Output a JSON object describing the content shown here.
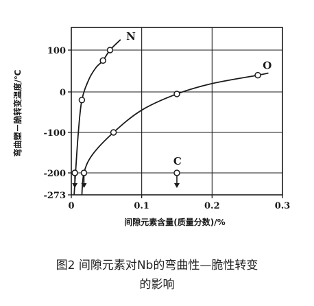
{
  "chart_data": {
    "type": "line",
    "ylabel": "弯曲塑－脆转变温度/℃",
    "xlabel": "间隙元素含量(质量分数)/%",
    "xlim": [
      0,
      0.3
    ],
    "ylim": [
      -273,
      150
    ],
    "x_ticks": [
      "0",
      "0.1",
      "0.2",
      "0.3"
    ],
    "y_ticks": [
      "100",
      "0",
      "-100",
      "-200",
      "-273"
    ],
    "y_tick_values": [
      100,
      0,
      -100,
      -200,
      -273
    ],
    "grid": true,
    "series": [
      {
        "name": "N",
        "x": [
          0.005,
          0.015,
          0.045,
          0.055
        ],
        "y": [
          -200,
          -20,
          75,
          100
        ],
        "curve_x": [
          0.004,
          0.006,
          0.01,
          0.015,
          0.025,
          0.035,
          0.045,
          0.055,
          0.07
        ],
        "curve_y": [
          -273,
          -200,
          -100,
          -20,
          30,
          58,
          75,
          100,
          125
        ]
      },
      {
        "name": "O",
        "x": [
          0.005,
          0.018,
          0.06,
          0.15,
          0.265
        ],
        "y": [
          -200,
          -200,
          -100,
          -5,
          40
        ],
        "curve_x": [
          0.015,
          0.018,
          0.03,
          0.06,
          0.1,
          0.15,
          0.2,
          0.265,
          0.28
        ],
        "curve_y": [
          -273,
          -200,
          -155,
          -100,
          -45,
          -5,
          20,
          40,
          45
        ]
      },
      {
        "name": "C",
        "x": [
          0.15
        ],
        "y": [
          -200
        ]
      }
    ],
    "arrows_x": [
      0.005,
      0.018,
      0.15
    ]
  },
  "caption": {
    "line1": "图2  间隙元素对Nb的弯曲性—脆性转变",
    "line2": "的影响"
  }
}
